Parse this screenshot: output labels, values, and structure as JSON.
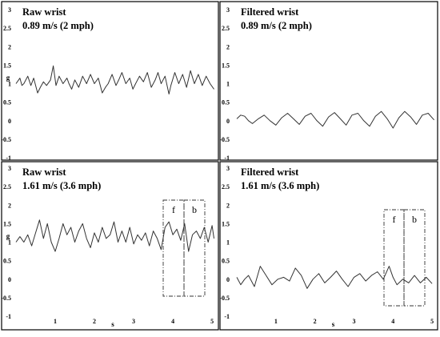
{
  "chart_data": [
    {
      "type": "line",
      "title": "Raw wrist",
      "subtitle": "0.89 m/s (2 mph)",
      "xlabel": "",
      "ylabel": "g",
      "xlim": [
        0,
        5.1
      ],
      "ylim": [
        -1,
        3
      ],
      "xticks": [],
      "yticks": [
        "3",
        "2.5",
        "2",
        "1.5",
        "1",
        "0.5",
        "0",
        "-0.5",
        "-1"
      ],
      "series": [
        {
          "x": [
            0,
            0.1,
            0.15,
            0.2,
            0.3,
            0.38,
            0.45,
            0.55,
            0.62,
            0.7,
            0.78,
            0.88,
            0.95,
            1.02,
            1.1,
            1.2,
            1.3,
            1.35,
            1.42,
            1.5,
            1.6,
            1.7,
            1.8,
            1.9,
            2.0,
            2.1,
            2.2,
            2.28,
            2.35,
            2.45,
            2.55,
            2.62,
            2.7,
            2.8,
            2.9,
            2.98,
            3.05,
            3.15,
            3.25,
            3.35,
            3.45,
            3.55,
            3.62,
            3.7,
            3.8,
            3.9,
            3.95,
            4.05,
            4.15,
            4.25,
            4.35,
            4.45,
            4.55,
            4.65,
            4.75,
            4.85,
            4.95,
            5.05
          ],
          "y": [
            1.0,
            1.15,
            0.95,
            1.0,
            1.2,
            0.95,
            1.15,
            0.75,
            0.9,
            1.05,
            0.95,
            1.1,
            1.48,
            0.95,
            1.2,
            1.0,
            1.15,
            1.0,
            0.85,
            1.1,
            0.9,
            1.2,
            1.0,
            1.25,
            1.0,
            1.15,
            0.75,
            0.9,
            1.0,
            1.25,
            0.95,
            1.1,
            1.3,
            1.0,
            1.15,
            0.85,
            1.0,
            1.2,
            1.05,
            1.3,
            0.9,
            1.1,
            1.3,
            1.0,
            1.2,
            0.72,
            0.95,
            1.3,
            1.0,
            1.25,
            0.9,
            1.35,
            1.0,
            1.25,
            0.95,
            1.2,
            1.0,
            0.85
          ]
        }
      ]
    },
    {
      "type": "line",
      "title": "Filtered wrist",
      "subtitle": "0.89 m/s (2 mph)",
      "xlabel": "",
      "ylabel": "",
      "xlim": [
        0,
        5.1
      ],
      "ylim": [
        -1,
        3
      ],
      "xticks": [],
      "yticks": [
        "3",
        "2.5",
        "2",
        "1.5",
        "1",
        "0.5",
        "0",
        "-0.5",
        "-1"
      ],
      "series": [
        {
          "x": [
            0,
            0.1,
            0.2,
            0.3,
            0.4,
            0.55,
            0.7,
            0.85,
            1.0,
            1.15,
            1.3,
            1.45,
            1.6,
            1.75,
            1.9,
            2.05,
            2.2,
            2.35,
            2.5,
            2.65,
            2.8,
            2.95,
            3.1,
            3.25,
            3.4,
            3.55,
            3.7,
            3.85,
            4.0,
            4.15,
            4.3,
            4.45,
            4.6,
            4.75,
            4.9,
            5.05
          ],
          "y": [
            0.05,
            0.15,
            0.12,
            0.0,
            -0.08,
            0.05,
            0.15,
            0.0,
            -0.12,
            0.08,
            0.2,
            0.05,
            -0.1,
            0.12,
            0.2,
            0.0,
            -0.15,
            0.1,
            0.22,
            0.05,
            -0.12,
            0.15,
            0.2,
            0.0,
            -0.15,
            0.12,
            0.25,
            0.05,
            -0.2,
            0.08,
            0.25,
            0.1,
            -0.1,
            0.15,
            0.2,
            0.02
          ]
        }
      ]
    },
    {
      "type": "line",
      "title": "Raw wrist",
      "subtitle": "1.61 m/s (3.6 mph)",
      "xlabel": "s",
      "ylabel": "g",
      "xlim": [
        0,
        5.1
      ],
      "ylim": [
        -1,
        3
      ],
      "xticks": [
        "1",
        "2",
        "3",
        "4",
        "5"
      ],
      "yticks": [
        "3",
        "2.5",
        "2",
        "1.5",
        "1",
        "0.5",
        "0",
        "-0.5",
        "-1"
      ],
      "annotations": [
        "f",
        "b"
      ],
      "series": [
        {
          "x": [
            0,
            0.1,
            0.2,
            0.3,
            0.4,
            0.5,
            0.6,
            0.7,
            0.8,
            0.9,
            1.0,
            1.1,
            1.2,
            1.3,
            1.4,
            1.5,
            1.6,
            1.7,
            1.8,
            1.9,
            2.0,
            2.1,
            2.2,
            2.3,
            2.4,
            2.5,
            2.6,
            2.7,
            2.8,
            2.9,
            3.0,
            3.1,
            3.2,
            3.3,
            3.4,
            3.5,
            3.6,
            3.7,
            3.8,
            3.9,
            4.0,
            4.1,
            4.2,
            4.3,
            4.4,
            4.5,
            4.6,
            4.7,
            4.8,
            4.9,
            5.0,
            5.05
          ],
          "y": [
            1.0,
            1.15,
            1.0,
            1.2,
            0.9,
            1.25,
            1.6,
            1.1,
            1.5,
            1.0,
            0.75,
            1.1,
            1.5,
            1.2,
            1.4,
            1.0,
            1.3,
            1.5,
            1.1,
            0.85,
            1.25,
            1.0,
            1.4,
            1.1,
            1.2,
            1.55,
            1.0,
            1.3,
            1.0,
            1.4,
            0.95,
            1.2,
            1.05,
            1.25,
            0.9,
            1.3,
            1.1,
            0.8,
            1.4,
            1.55,
            1.2,
            1.35,
            1.05,
            1.5,
            0.75,
            1.2,
            1.3,
            1.1,
            1.4,
            1.0,
            1.45,
            1.1
          ]
        }
      ]
    },
    {
      "type": "line",
      "title": "Filtered wrist",
      "subtitle": "1.61 m/s (3.6 mph)",
      "xlabel": "s",
      "ylabel": "",
      "xlim": [
        0,
        5.1
      ],
      "ylim": [
        -1,
        3
      ],
      "xticks": [
        "1",
        "2",
        "3",
        "4",
        "5"
      ],
      "yticks": [
        "3",
        "2.5",
        "2",
        "1.5",
        "1",
        "0.5",
        "0",
        "-0.5",
        "-1"
      ],
      "annotations": [
        "f",
        "b"
      ],
      "series": [
        {
          "x": [
            0,
            0.1,
            0.2,
            0.3,
            0.45,
            0.6,
            0.75,
            0.9,
            1.05,
            1.2,
            1.35,
            1.5,
            1.65,
            1.8,
            1.95,
            2.1,
            2.25,
            2.4,
            2.55,
            2.7,
            2.85,
            3.0,
            3.15,
            3.3,
            3.45,
            3.6,
            3.75,
            3.9,
            4.0,
            4.1,
            4.25,
            4.4,
            4.55,
            4.7,
            4.85,
            5.0
          ],
          "y": [
            0.05,
            -0.15,
            0.0,
            0.1,
            -0.2,
            0.35,
            0.1,
            -0.15,
            0.0,
            0.05,
            -0.05,
            0.3,
            0.1,
            -0.25,
            0.0,
            0.15,
            -0.1,
            0.05,
            0.22,
            0.0,
            -0.2,
            0.05,
            0.15,
            -0.05,
            0.1,
            0.2,
            0.0,
            0.35,
            0.05,
            -0.15,
            0.0,
            -0.1,
            0.1,
            -0.1,
            0.05,
            -0.12
          ]
        }
      ]
    }
  ]
}
